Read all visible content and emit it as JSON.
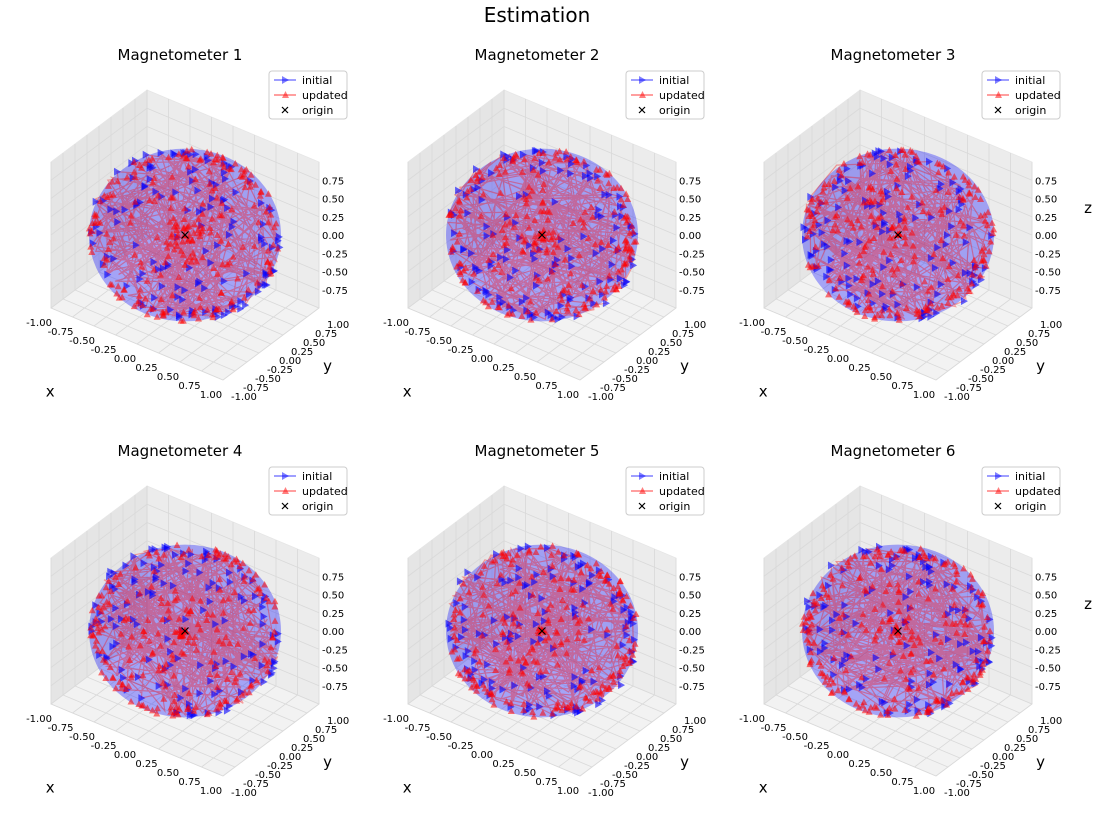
{
  "figure": {
    "title": "Estimation"
  },
  "legend": {
    "entries": [
      {
        "label": "initial",
        "color": "#0000ff",
        "marker": "triangle-right"
      },
      {
        "label": "updated",
        "color": "#ff0000",
        "marker": "triangle-up"
      },
      {
        "label": "origin",
        "color": "#000000",
        "marker": "x"
      }
    ],
    "placement": "upper right"
  },
  "colors": {
    "initial": "#0000ff",
    "updated": "#ff0000",
    "origin": "#000000",
    "pane": "#f2f2f2",
    "grid": "#d9d9d9"
  },
  "chart_data": [
    {
      "type": "scatter",
      "title": "Magnetometer 1",
      "xlabel": "x",
      "ylabel": "y",
      "zlabel": "",
      "xlim": [
        -1,
        1
      ],
      "ylim": [
        -1,
        1
      ],
      "zlim": [
        -1,
        1
      ],
      "xticks": [
        "-1.00",
        "-0.75",
        "-0.50",
        "-0.25",
        "0.00",
        "0.25",
        "0.50",
        "0.75",
        "1.00"
      ],
      "yticks": [
        "-1.00",
        "-0.75",
        "-0.50",
        "-0.25",
        "0.00",
        "0.25",
        "0.50",
        "0.75",
        "1.00"
      ],
      "zticks": [
        "-0.75",
        "-0.50",
        "-0.25",
        "0.00",
        "0.25",
        "0.50",
        "0.75"
      ],
      "series": [
        {
          "name": "initial",
          "description": "Points distributed on unit sphere surface",
          "radius": 1.0,
          "center": [
            0,
            0,
            0
          ]
        },
        {
          "name": "updated",
          "description": "Points on unit sphere surface",
          "radius": 1.0,
          "center": [
            0,
            0,
            0
          ]
        },
        {
          "name": "origin",
          "x": [
            0
          ],
          "y": [
            0
          ],
          "z": [
            0
          ]
        }
      ]
    },
    {
      "type": "scatter",
      "title": "Magnetometer 2",
      "xlabel": "x",
      "ylabel": "y",
      "zlabel": "",
      "xlim": [
        -1,
        1
      ],
      "ylim": [
        -1,
        1
      ],
      "zlim": [
        -1,
        1
      ],
      "xticks": [
        "-1.00",
        "-0.75",
        "-0.50",
        "-0.25",
        "0.00",
        "0.25",
        "0.50",
        "0.75",
        "1.00"
      ],
      "yticks": [
        "-1.00",
        "-0.75",
        "-0.50",
        "-0.25",
        "0.00",
        "0.25",
        "0.50",
        "0.75",
        "1.00"
      ],
      "zticks": [
        "-0.75",
        "-0.50",
        "-0.25",
        "0.00",
        "0.25",
        "0.50",
        "0.75"
      ],
      "series": [
        {
          "name": "initial",
          "radius": 1.0,
          "center": [
            0,
            0,
            0
          ]
        },
        {
          "name": "updated",
          "radius": 1.0,
          "center": [
            0,
            0,
            0
          ]
        },
        {
          "name": "origin",
          "x": [
            0
          ],
          "y": [
            0
          ],
          "z": [
            0
          ]
        }
      ]
    },
    {
      "type": "scatter",
      "title": "Magnetometer 3",
      "xlabel": "x",
      "ylabel": "y",
      "zlabel": "z",
      "xlim": [
        -1,
        1
      ],
      "ylim": [
        -1,
        1
      ],
      "zlim": [
        -1,
        1
      ],
      "xticks": [
        "-1.00",
        "-0.75",
        "-0.50",
        "-0.25",
        "0.00",
        "0.25",
        "0.50",
        "0.75",
        "1.00"
      ],
      "yticks": [
        "-1.00",
        "-0.75",
        "-0.50",
        "-0.25",
        "0.00",
        "0.25",
        "0.50",
        "0.75",
        "1.00"
      ],
      "zticks": [
        "-0.75",
        "-0.50",
        "-0.25",
        "0.00",
        "0.25",
        "0.50",
        "0.75"
      ],
      "series": [
        {
          "name": "initial",
          "radius": 1.0,
          "center": [
            0,
            0,
            0
          ]
        },
        {
          "name": "updated",
          "radius": 1.0,
          "center": [
            0,
            0,
            0
          ]
        },
        {
          "name": "origin",
          "x": [
            0
          ],
          "y": [
            0
          ],
          "z": [
            0
          ]
        }
      ]
    },
    {
      "type": "scatter",
      "title": "Magnetometer 4",
      "xlabel": "x",
      "ylabel": "y",
      "zlabel": "",
      "xlim": [
        -1,
        1
      ],
      "ylim": [
        -1,
        1
      ],
      "zlim": [
        -1,
        1
      ],
      "xticks": [
        "-1.00",
        "-0.75",
        "-0.50",
        "-0.25",
        "0.00",
        "0.25",
        "0.50",
        "0.75",
        "1.00"
      ],
      "yticks": [
        "-1.00",
        "-0.75",
        "-0.50",
        "-0.25",
        "0.00",
        "0.25",
        "0.50",
        "0.75",
        "1.00"
      ],
      "zticks": [
        "-0.75",
        "-0.50",
        "-0.25",
        "0.00",
        "0.25",
        "0.50",
        "0.75"
      ],
      "series": [
        {
          "name": "initial",
          "radius": 1.0,
          "center": [
            0,
            0,
            0
          ]
        },
        {
          "name": "updated",
          "radius": 1.0,
          "center": [
            0,
            0,
            0
          ]
        },
        {
          "name": "origin",
          "x": [
            0
          ],
          "y": [
            0
          ],
          "z": [
            0
          ]
        }
      ]
    },
    {
      "type": "scatter",
      "title": "Magnetometer 5",
      "xlabel": "x",
      "ylabel": "y",
      "zlabel": "",
      "xlim": [
        -1,
        1
      ],
      "ylim": [
        -1,
        1
      ],
      "zlim": [
        -1,
        1
      ],
      "xticks": [
        "-1.00",
        "-0.75",
        "-0.50",
        "-0.25",
        "0.00",
        "0.25",
        "0.50",
        "0.75",
        "1.00"
      ],
      "yticks": [
        "-1.00",
        "-0.75",
        "-0.50",
        "-0.25",
        "0.00",
        "0.25",
        "0.50",
        "0.75",
        "1.00"
      ],
      "zticks": [
        "-0.75",
        "-0.50",
        "-0.25",
        "0.00",
        "0.25",
        "0.50",
        "0.75"
      ],
      "series": [
        {
          "name": "initial",
          "radius": 1.0,
          "center": [
            0,
            0,
            0
          ]
        },
        {
          "name": "updated",
          "radius": 1.0,
          "center": [
            0,
            0,
            0
          ]
        },
        {
          "name": "origin",
          "x": [
            0
          ],
          "y": [
            0
          ],
          "z": [
            0
          ]
        }
      ]
    },
    {
      "type": "scatter",
      "title": "Magnetometer 6",
      "xlabel": "x",
      "ylabel": "y",
      "zlabel": "z",
      "xlim": [
        -1,
        1
      ],
      "ylim": [
        -1,
        1
      ],
      "zlim": [
        -1,
        1
      ],
      "xticks": [
        "-1.00",
        "-0.75",
        "-0.50",
        "-0.25",
        "0.00",
        "0.25",
        "0.50",
        "0.75",
        "1.00"
      ],
      "yticks": [
        "-1.00",
        "-0.75",
        "-0.50",
        "-0.25",
        "0.00",
        "0.25",
        "0.50",
        "0.75",
        "1.00"
      ],
      "zticks": [
        "-0.75",
        "-0.50",
        "-0.25",
        "0.00",
        "0.25",
        "0.50",
        "0.75"
      ],
      "series": [
        {
          "name": "initial",
          "radius": 1.0,
          "center": [
            0,
            0,
            0
          ]
        },
        {
          "name": "updated",
          "radius": 1.0,
          "center": [
            0,
            0,
            0
          ]
        },
        {
          "name": "origin",
          "x": [
            0
          ],
          "y": [
            0
          ],
          "z": [
            0
          ]
        }
      ]
    }
  ]
}
